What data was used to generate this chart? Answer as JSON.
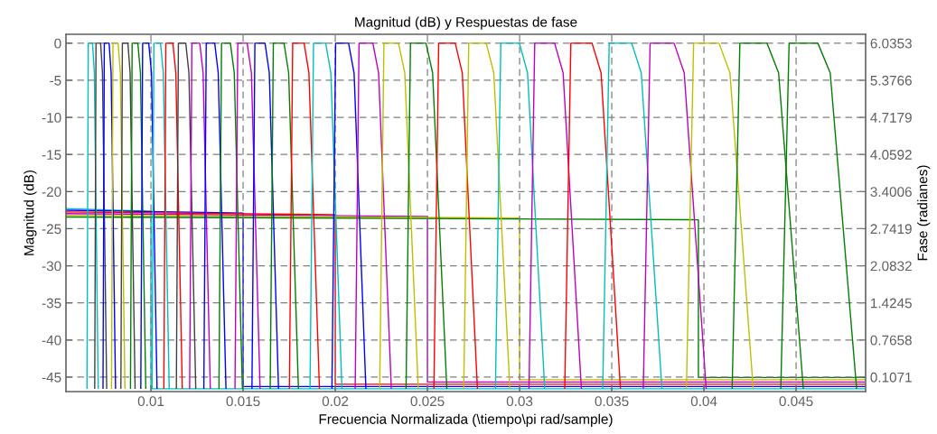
{
  "chart_data": {
    "type": "line",
    "title": "Magnitud (dB) y Respuestas de fase",
    "xlabel": "Frecuencia Normalizada (\\tiempo\\pi rad/sample)",
    "ylabel": "Magnitud (dB)",
    "y2label": "Fase (radianes)",
    "xlim": [
      0.00539,
      0.04877
    ],
    "xticks": [
      0.01,
      0.015,
      0.02,
      0.025,
      0.03,
      0.035,
      0.04,
      0.045
    ],
    "ylim": [
      -46.95,
      1.2
    ],
    "yticks": [
      -45,
      -40,
      -35,
      -30,
      -25,
      -20,
      -15,
      -10,
      -5,
      0
    ],
    "y2lim": [
      -0.15,
      6.193
    ],
    "y2ticks": [
      0.1071,
      0.7658,
      1.4245,
      2.0832,
      2.7419,
      3.4006,
      4.0592,
      4.7179,
      5.3766,
      6.0353
    ],
    "grid": true,
    "legend": false,
    "marker": "none",
    "line_style": "solid",
    "series": [
      {
        "color": "#00bfbf",
        "x": [
          0.00653,
          0.0066,
          0.00683,
          0.00693,
          0.00714
        ],
        "values": [
          -46.5,
          0,
          0,
          -4,
          -46.5
        ]
      },
      {
        "color": "#404040",
        "x": [
          0.00695,
          0.00702,
          0.00727,
          0.00737,
          0.0076
        ],
        "values": [
          -46.5,
          0,
          0,
          -4,
          -46.5
        ]
      },
      {
        "color": "#0000ff",
        "x": [
          0.0074,
          0.00747,
          0.00773,
          0.00784,
          0.00808
        ],
        "values": [
          -46.5,
          0,
          0,
          -4,
          -46.5
        ]
      },
      {
        "color": "#bfbf00",
        "x": [
          0.00786,
          0.00794,
          0.00822,
          0.00834,
          0.00859
        ],
        "values": [
          -46.5,
          0,
          0,
          -4,
          -46.5
        ]
      },
      {
        "color": "#404040",
        "x": [
          0.00837,
          0.00845,
          0.00875,
          0.00887,
          0.00914
        ],
        "values": [
          -46.5,
          0,
          0,
          -4,
          -46.5
        ]
      },
      {
        "color": "#008000",
        "x": [
          0.00889,
          0.00898,
          0.00929,
          0.00943,
          0.00972
        ],
        "values": [
          -46.5,
          0,
          0,
          -4,
          -46.5
        ]
      },
      {
        "color": "#0000ff",
        "x": [
          0.00945,
          0.00955,
          0.00988,
          0.01003,
          0.01033
        ],
        "values": [
          -46.5,
          0,
          0,
          -4,
          -46.5
        ]
      },
      {
        "color": "#00bfbf",
        "x": [
          0.01006,
          0.01016,
          0.01052,
          0.01067,
          0.01099
        ],
        "values": [
          -46.5,
          0,
          0,
          -4,
          -46.5
        ]
      },
      {
        "color": "#ff0000",
        "x": [
          0.0107,
          0.01081,
          0.01119,
          0.01135,
          0.0117
        ],
        "values": [
          -46.5,
          0,
          0,
          -4,
          -46.5
        ]
      },
      {
        "color": "#404040",
        "x": [
          0.01138,
          0.01149,
          0.01189,
          0.01206,
          0.01243
        ],
        "values": [
          -46.5,
          0,
          0,
          -4,
          -46.5
        ]
      },
      {
        "color": "#bf00bf",
        "x": [
          0.0121,
          0.01222,
          0.01265,
          0.01283,
          0.01322
        ],
        "values": [
          -46.5,
          0,
          0,
          -4,
          -46.5
        ]
      },
      {
        "color": "#0000ff",
        "x": [
          0.01287,
          0.013,
          0.01346,
          0.01365,
          0.01407
        ],
        "values": [
          -46.5,
          0,
          0,
          -4,
          -46.5
        ]
      },
      {
        "color": "#008000",
        "x": [
          0.01369,
          0.01383,
          0.01431,
          0.01452,
          0.01496
        ],
        "values": [
          -46.5,
          0,
          0,
          -4,
          -46.5
        ]
      },
      {
        "color": "#bf00bf",
        "x": [
          0.01456,
          0.01471,
          0.01522,
          0.01545,
          0.01592
        ],
        "values": [
          -46.5,
          0,
          0,
          -4,
          -46.5
        ]
      },
      {
        "color": "#0000ff",
        "x": [
          0.01548,
          0.01564,
          0.01619,
          0.01642,
          0.01692
        ],
        "values": [
          -46.5,
          0,
          0,
          -4,
          -46.5
        ]
      },
      {
        "color": "#008000",
        "x": [
          0.01647,
          0.01664,
          0.01722,
          0.01747,
          0.018
        ],
        "values": [
          -46.5,
          0,
          0,
          -4,
          -46.5
        ]
      },
      {
        "color": "#ff0000",
        "x": [
          0.01751,
          0.01769,
          0.01831,
          0.01857,
          0.01914
        ],
        "values": [
          -46.5,
          0,
          0,
          -4,
          -46.5
        ]
      },
      {
        "color": "#00bfbf",
        "x": [
          0.01863,
          0.01882,
          0.01948,
          0.01976,
          0.02036
        ],
        "values": [
          -46.5,
          0,
          0,
          -4,
          -46.5
        ]
      },
      {
        "color": "#0000ff",
        "x": [
          0.01982,
          0.02002,
          0.02072,
          0.02102,
          0.02166
        ],
        "values": [
          -46.5,
          0,
          0,
          -4,
          -46.5
        ]
      },
      {
        "color": "#bf00bf",
        "x": [
          0.02108,
          0.02129,
          0.02204,
          0.02235,
          0.02304
        ],
        "values": [
          -46.5,
          0,
          0,
          -4,
          -46.5
        ]
      },
      {
        "color": "#bfbf00",
        "x": [
          0.02241,
          0.02264,
          0.02343,
          0.02377,
          0.0245
        ],
        "values": [
          -46.5,
          0,
          0,
          -4,
          -46.5
        ]
      },
      {
        "color": "#008000",
        "x": [
          0.02384,
          0.02408,
          0.02492,
          0.02528,
          0.02605
        ],
        "values": [
          -46.5,
          0,
          0,
          -4,
          -46.5
        ]
      },
      {
        "color": "#ff0000",
        "x": [
          0.02535,
          0.02561,
          0.02651,
          0.02689,
          0.02771
        ],
        "values": [
          -46.5,
          0,
          0,
          -4,
          -46.5
        ]
      },
      {
        "color": "#bfbf00",
        "x": [
          0.02697,
          0.02724,
          0.02819,
          0.0286,
          0.02947
        ],
        "values": [
          -46.5,
          0,
          0,
          -4,
          -46.5
        ]
      },
      {
        "color": "#00bfbf",
        "x": [
          0.02869,
          0.02898,
          0.02999,
          0.03043,
          0.03136
        ],
        "values": [
          -46.5,
          0,
          0,
          -4,
          -46.5
        ]
      },
      {
        "color": "#bf00bf",
        "x": [
          0.03051,
          0.03082,
          0.0319,
          0.03236,
          0.03335
        ],
        "values": [
          -46.5,
          0,
          0,
          -4,
          -46.5
        ]
      },
      {
        "color": "#ff0000",
        "x": [
          0.03245,
          0.03278,
          0.03393,
          0.03442,
          0.03547
        ],
        "values": [
          -46.5,
          0,
          0,
          -4,
          -46.5
        ]
      },
      {
        "color": "#00bfbf",
        "x": [
          0.03451,
          0.03486,
          0.03608,
          0.0366,
          0.03772
        ],
        "values": [
          -46.5,
          0,
          0,
          -4,
          -46.5
        ]
      },
      {
        "color": "#bf00bf",
        "x": [
          0.03671,
          0.03708,
          0.03838,
          0.03893,
          0.04012
        ],
        "values": [
          -46.5,
          0,
          0,
          -4,
          -46.5
        ]
      },
      {
        "color": "#bfbf00",
        "x": [
          0.03905,
          0.03944,
          0.04082,
          0.04141,
          0.04267
        ],
        "values": [
          -46.5,
          0,
          0,
          -4,
          -46.5
        ]
      },
      {
        "color": "#008000",
        "x": [
          0.04153,
          0.04195,
          0.04342,
          0.04405,
          0.04539
        ],
        "values": [
          -46.5,
          0,
          0,
          -4,
          -46.5
        ]
      },
      {
        "color": "#008000",
        "x": [
          0.04417,
          0.04462,
          0.04618,
          0.04685,
          0.04828
        ],
        "values": [
          -46.5,
          0,
          0,
          -4,
          -46.5
        ]
      },
      {
        "axis": "y2",
        "color": "#00bfbf",
        "x": [
          0.0054,
          0.01,
          0.01,
          0.0487
        ],
        "values": [
          3.1,
          3.05,
          -0.1,
          -0.1
        ]
      },
      {
        "axis": "y2",
        "color": "#0000ff",
        "x": [
          0.0054,
          0.015,
          0.015,
          0.0487
        ],
        "values": [
          3.07,
          3.02,
          -0.06,
          -0.06
        ]
      },
      {
        "axis": "y2",
        "color": "#ff0000",
        "x": [
          0.0054,
          0.02,
          0.02,
          0.0487
        ],
        "values": [
          3.04,
          2.99,
          -0.02,
          -0.02
        ]
      },
      {
        "axis": "y2",
        "color": "#bf00bf",
        "x": [
          0.0054,
          0.025,
          0.025,
          0.0487
        ],
        "values": [
          3.01,
          2.96,
          0.02,
          0.02
        ]
      },
      {
        "axis": "y2",
        "color": "#bfbf00",
        "x": [
          0.0054,
          0.03,
          0.03,
          0.0487
        ],
        "values": [
          2.98,
          2.93,
          0.06,
          0.06
        ]
      },
      {
        "axis": "y2",
        "color": "#008000",
        "x": [
          0.0054,
          0.0397,
          0.0397,
          0.0487
        ],
        "values": [
          2.95,
          2.9,
          0.1,
          0.1
        ]
      }
    ]
  }
}
